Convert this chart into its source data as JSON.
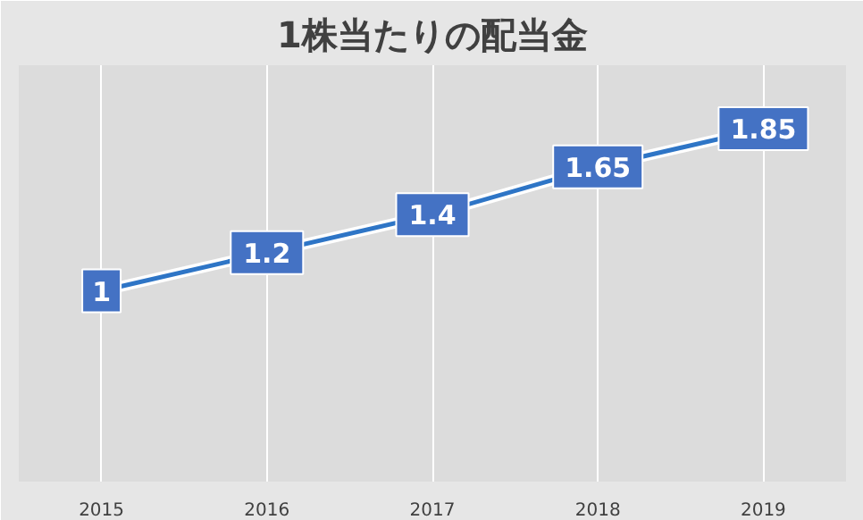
{
  "chart_data": {
    "type": "line",
    "title": "1株当たりの配当金",
    "categories": [
      "2015",
      "2016",
      "2017",
      "2018",
      "2019"
    ],
    "series": [
      {
        "color": "#2e75c6",
        "values": [
          1,
          1.2,
          1.4,
          1.65,
          1.85
        ]
      }
    ],
    "data_labels": true,
    "grid": "x",
    "tick_labels": "x",
    "line_style": "solid"
  }
}
